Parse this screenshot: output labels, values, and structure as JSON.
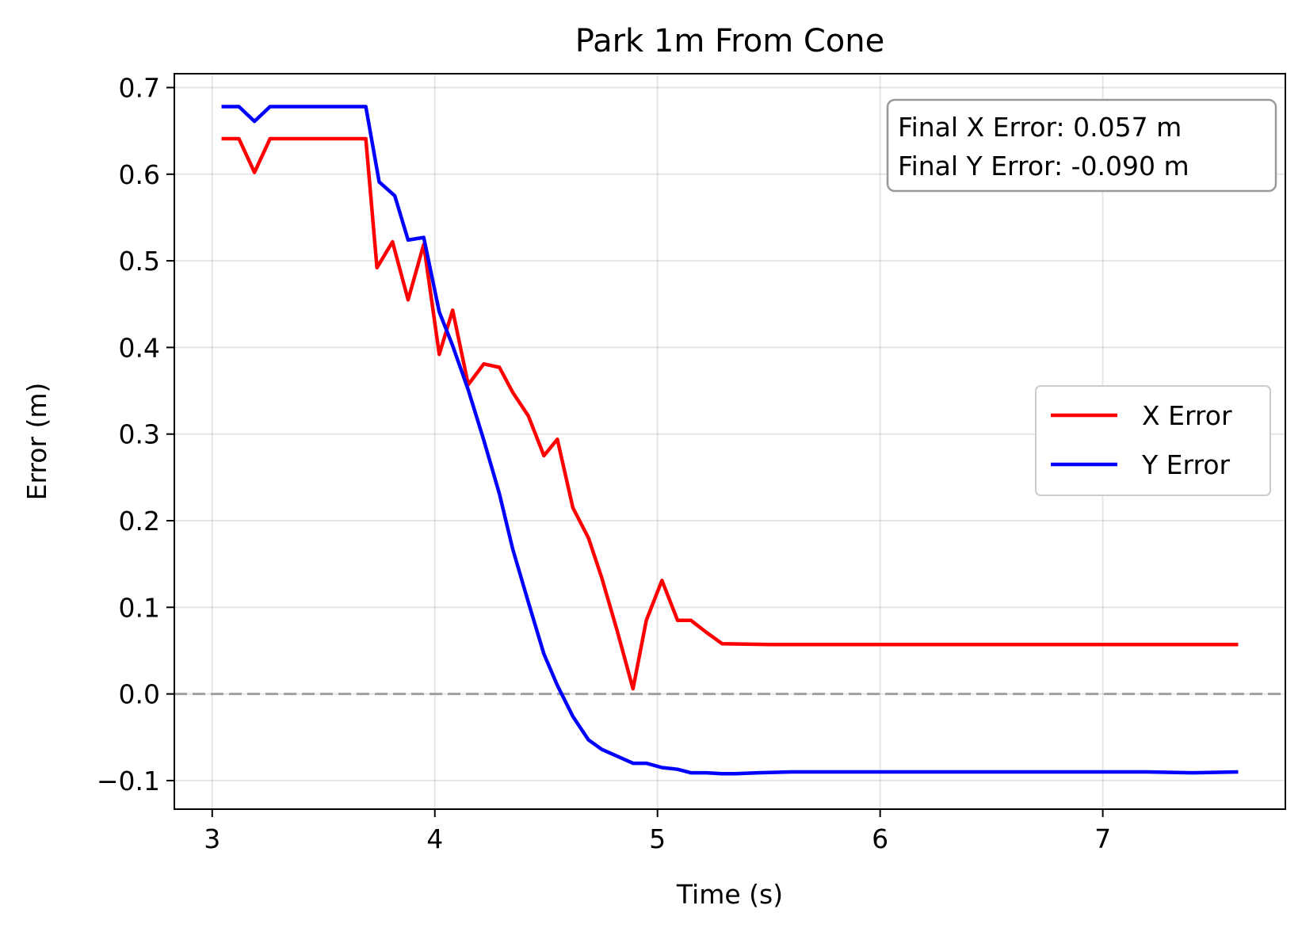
{
  "chart_data": {
    "type": "line",
    "title": "Park 1m From Cone",
    "xlabel": "Time (s)",
    "ylabel": "Error (m)",
    "xlim": [
      2.83,
      7.82
    ],
    "ylim": [
      -0.133,
      0.716
    ],
    "xticks": [
      3,
      4,
      5,
      6,
      7
    ],
    "xtick_labels": [
      "3",
      "4",
      "5",
      "6",
      "7"
    ],
    "yticks": [
      -0.1,
      0.0,
      0.1,
      0.2,
      0.3,
      0.4,
      0.5,
      0.6,
      0.7
    ],
    "ytick_labels": [
      "−0.1",
      "0.0",
      "0.1",
      "0.2",
      "0.3",
      "0.4",
      "0.5",
      "0.6",
      "0.7"
    ],
    "grid": true,
    "legend_position": "center-right",
    "reference_line": {
      "y": 0.0,
      "style": "dashed",
      "color": "#a0a0a0"
    },
    "annotation": {
      "lines": [
        "Final X Error: 0.057 m",
        "Final Y Error: -0.090 m"
      ],
      "position": "top-right"
    },
    "series": [
      {
        "name": "X Error",
        "color": "#ff0000",
        "x": [
          3.05,
          3.12,
          3.19,
          3.26,
          3.35,
          3.45,
          3.55,
          3.62,
          3.69,
          3.74,
          3.81,
          3.88,
          3.95,
          4.02,
          4.08,
          4.15,
          4.22,
          4.29,
          4.35,
          4.42,
          4.49,
          4.55,
          4.62,
          4.69,
          4.75,
          4.82,
          4.89,
          4.95,
          5.02,
          5.09,
          5.15,
          5.22,
          5.29,
          5.5,
          6.0,
          6.5,
          7.0,
          7.3,
          7.6
        ],
        "y": [
          0.641,
          0.641,
          0.602,
          0.641,
          0.641,
          0.641,
          0.641,
          0.641,
          0.641,
          0.492,
          0.522,
          0.455,
          0.519,
          0.392,
          0.443,
          0.357,
          0.381,
          0.377,
          0.348,
          0.321,
          0.275,
          0.294,
          0.215,
          0.18,
          0.134,
          0.072,
          0.006,
          0.085,
          0.131,
          0.085,
          0.085,
          0.071,
          0.058,
          0.057,
          0.057,
          0.057,
          0.057,
          0.057,
          0.057
        ]
      },
      {
        "name": "Y Error",
        "color": "#0000ff",
        "x": [
          3.05,
          3.12,
          3.19,
          3.26,
          3.35,
          3.45,
          3.55,
          3.62,
          3.69,
          3.75,
          3.82,
          3.88,
          3.95,
          4.02,
          4.08,
          4.15,
          4.22,
          4.29,
          4.35,
          4.42,
          4.49,
          4.55,
          4.62,
          4.69,
          4.75,
          4.82,
          4.89,
          4.95,
          5.02,
          5.09,
          5.15,
          5.22,
          5.29,
          5.35,
          5.45,
          5.6,
          5.8,
          6.0,
          6.3,
          6.5,
          7.0,
          7.2,
          7.4,
          7.6
        ],
        "y": [
          0.678,
          0.678,
          0.661,
          0.678,
          0.678,
          0.678,
          0.678,
          0.678,
          0.678,
          0.591,
          0.575,
          0.524,
          0.527,
          0.441,
          0.402,
          0.351,
          0.293,
          0.231,
          0.167,
          0.106,
          0.046,
          0.01,
          -0.026,
          -0.053,
          -0.064,
          -0.072,
          -0.08,
          -0.08,
          -0.085,
          -0.087,
          -0.091,
          -0.091,
          -0.092,
          -0.092,
          -0.091,
          -0.09,
          -0.09,
          -0.09,
          -0.09,
          -0.09,
          -0.09,
          -0.09,
          -0.091,
          -0.09
        ]
      }
    ]
  }
}
